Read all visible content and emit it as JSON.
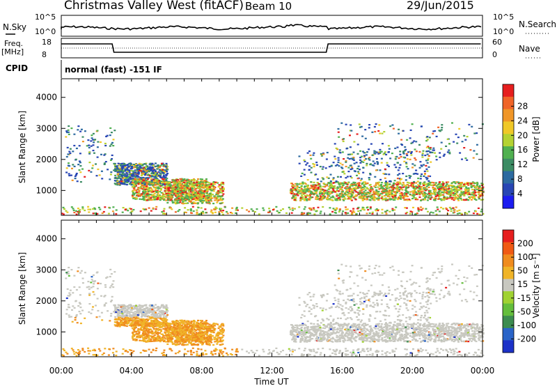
{
  "header": {
    "station": "Christmas Valley West (fitACF)",
    "beam": "Beam 10",
    "date": "29/Jun/2015"
  },
  "top_panels": {
    "nsky_label": "N.Sky",
    "nsky_ticks": [
      "10^5",
      "10^0"
    ],
    "nsearch_label": "N.Search",
    "nsearch_ticks": [
      "10^5",
      "10^0"
    ],
    "freq_label_1": "Freq.",
    "freq_label_2": "[MHz]",
    "freq_ticks": [
      "18",
      "8"
    ],
    "nave_label": "Nave",
    "nave_ticks": [
      "60",
      "0"
    ],
    "cpid_label": "CPID",
    "cpid_value": "normal (fast) -151 IF"
  },
  "chart_data": [
    {
      "type": "heatmap",
      "name": "power",
      "ylabel": "Slant Range [km]",
      "yticks": [
        "1000",
        "2000",
        "3000",
        "4000"
      ],
      "ylim": [
        200,
        4600
      ],
      "colorbar_label": "Power [dB]",
      "colorbar_ticks": [
        "4",
        "8",
        "12",
        "16",
        "20",
        "24",
        "28"
      ],
      "colors": [
        "#1c1cf0",
        "#2846b4",
        "#2c6aa0",
        "#3c8c64",
        "#50b050",
        "#b4d232",
        "#f0c828",
        "#f09628",
        "#f06428",
        "#e61e1e"
      ]
    },
    {
      "type": "heatmap",
      "name": "velocity",
      "ylabel": "Slant Range [km]",
      "yticks": [
        "1000",
        "2000",
        "3000",
        "4000"
      ],
      "ylim": [
        200,
        4600
      ],
      "colorbar_label": "Velocity [m s⁻¹]",
      "colorbar_ticks": [
        "200",
        "100",
        "50",
        "15",
        "-15",
        "-50",
        "-100",
        "-200"
      ],
      "colors": [
        "#1c32c8",
        "#2a64c8",
        "#3c8c50",
        "#64be3c",
        "#a0d232",
        "#c8c8c0",
        "#f0b428",
        "#f08c1e",
        "#f05a14",
        "#e61e1e"
      ],
      "xlabel": "Time UT",
      "xticks": [
        "00:00",
        "04:00",
        "08:00",
        "12:00",
        "16:00",
        "20:00",
        "00:00"
      ]
    }
  ]
}
